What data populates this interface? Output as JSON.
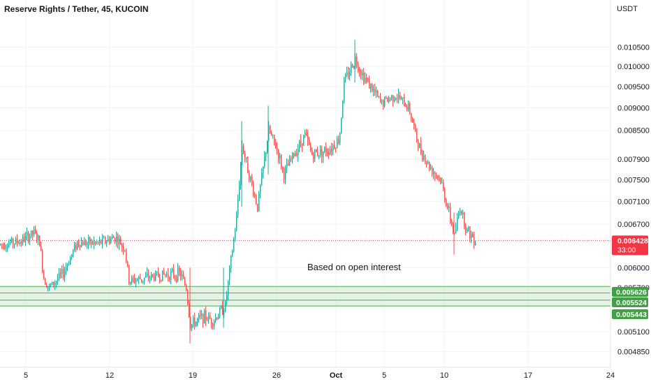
{
  "header": {
    "title": "Reserve Rights / Tether, 45, KUCOIN",
    "currency": "USDT"
  },
  "colors": {
    "up": "#26a69a",
    "down": "#ef5350",
    "zone_fill": "#cfe8cf",
    "zone_line": "#4caf50",
    "price_tag": "#f23645",
    "level_tag": "#43a047"
  },
  "chart_data": {
    "type": "candlestick",
    "symbol": "Reserve Rights / Tether",
    "interval": "45",
    "exchange": "KUCOIN",
    "y_scale": "log",
    "y_axis": {
      "ticks": [
        "0.010500",
        "0.010000",
        "0.009500",
        "0.009000",
        "0.008500",
        "0.007900",
        "0.007500",
        "0.007100",
        "0.006700",
        "0.006000",
        "0.005700",
        "0.005100",
        "0.004850"
      ],
      "range": [
        0.0046,
        0.0115
      ]
    },
    "x_axis": {
      "ticks": [
        "5",
        "12",
        "19",
        "26",
        "Oct",
        "5",
        "10",
        "17",
        "24"
      ]
    },
    "current_price": {
      "value": "0.006428",
      "countdown": "33:00"
    },
    "levels": [
      "0.005626",
      "0.005524",
      "0.005443"
    ],
    "support_zone": {
      "low": 0.005443,
      "high": 0.00572
    },
    "annotations": [
      "Based on open interest"
    ],
    "price_path": [
      [
        0,
        0.00636
      ],
      [
        30,
        0.00642
      ],
      [
        48,
        0.00655
      ],
      [
        56,
        0.0064
      ],
      [
        62,
        0.00585
      ],
      [
        70,
        0.0057
      ],
      [
        90,
        0.00592
      ],
      [
        110,
        0.0064
      ],
      [
        140,
        0.00638
      ],
      [
        165,
        0.00648
      ],
      [
        178,
        0.0063
      ],
      [
        184,
        0.0058
      ],
      [
        210,
        0.00585
      ],
      [
        240,
        0.0059
      ],
      [
        258,
        0.0059
      ],
      [
        266,
        0.0057
      ],
      [
        272,
        0.00518
      ],
      [
        290,
        0.0053
      ],
      [
        305,
        0.00525
      ],
      [
        322,
        0.00545
      ],
      [
        330,
        0.0061
      ],
      [
        338,
        0.0068
      ],
      [
        346,
        0.0082
      ],
      [
        356,
        0.0076
      ],
      [
        368,
        0.007
      ],
      [
        384,
        0.0085
      ],
      [
        396,
        0.0081
      ],
      [
        406,
        0.0076
      ],
      [
        420,
        0.008
      ],
      [
        436,
        0.0084
      ],
      [
        446,
        0.008
      ],
      [
        470,
        0.0081
      ],
      [
        485,
        0.0083
      ],
      [
        492,
        0.0096
      ],
      [
        500,
        0.0099
      ],
      [
        508,
        0.0102
      ],
      [
        518,
        0.0098
      ],
      [
        530,
        0.0095
      ],
      [
        545,
        0.0091
      ],
      [
        565,
        0.0093
      ],
      [
        585,
        0.009
      ],
      [
        598,
        0.0082
      ],
      [
        612,
        0.0078
      ],
      [
        630,
        0.0075
      ],
      [
        642,
        0.0069
      ],
      [
        650,
        0.0065
      ],
      [
        658,
        0.007
      ],
      [
        668,
        0.0066
      ],
      [
        680,
        0.00643
      ]
    ]
  }
}
